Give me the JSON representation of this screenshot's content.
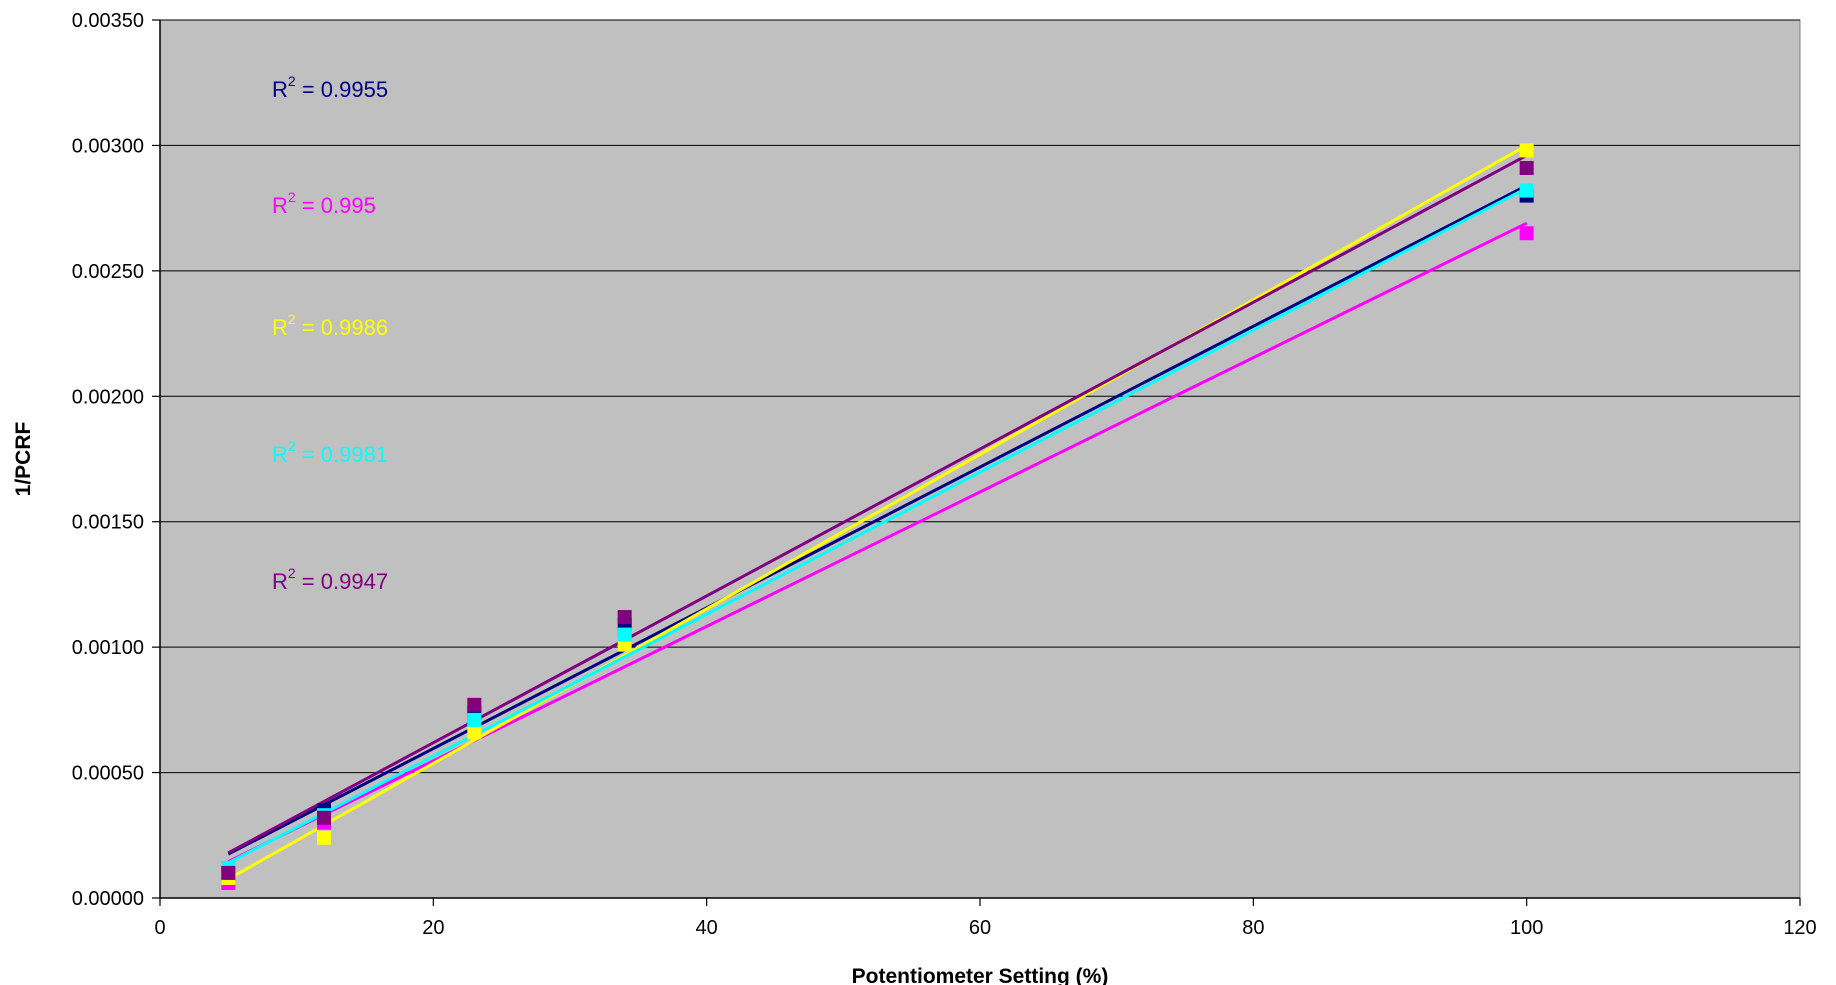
{
  "chart_data": {
    "type": "scatter",
    "title": "",
    "xlabel": "Potentiometer Setting (%)",
    "ylabel": "1/PCRF",
    "xlim": [
      0,
      120
    ],
    "ylim": [
      0,
      0.0035
    ],
    "x_ticks": [
      "0",
      "20",
      "40",
      "60",
      "80",
      "100",
      "120"
    ],
    "y_ticks": [
      "0.00000",
      "0.00050",
      "0.00100",
      "0.00150",
      "0.00200",
      "0.00250",
      "0.00300",
      "0.00350"
    ],
    "grid": "horizontal",
    "plot_background": "#c0c0c0",
    "x": [
      5,
      12,
      23,
      34,
      100
    ],
    "series": [
      {
        "color": "#000080",
        "values": [
          0.0001,
          0.00035,
          0.00074,
          0.00109,
          0.0028
        ],
        "trendline": [
          0.000175,
          0.00284
        ],
        "r2_label": "R",
        "r2_sup": "2",
        "r2_value": " = 0.9955"
      },
      {
        "color": "#ff00ff",
        "values": [
          6e-05,
          0.0003,
          0.0007,
          0.00103,
          0.00265
        ],
        "trendline": [
          0.000145,
          0.00269
        ],
        "r2_label": "R",
        "r2_sup": "2",
        "r2_value": " = 0.995"
      },
      {
        "color": "#ffff00",
        "values": [
          8e-05,
          0.00024,
          0.00066,
          0.00101,
          0.00298
        ],
        "trendline": [
          7.5e-05,
          0.003
        ],
        "r2_label": "R",
        "r2_sup": "2",
        "r2_value": " = 0.9986"
      },
      {
        "color": "#00ffff",
        "values": [
          0.00012,
          0.00033,
          0.00071,
          0.00105,
          0.00282
        ],
        "trendline": [
          0.00014,
          0.00283
        ],
        "r2_label": "R",
        "r2_sup": "2",
        "r2_value": " = 0.9981"
      },
      {
        "color": "#800080",
        "values": [
          0.0001,
          0.00032,
          0.00077,
          0.00112,
          0.00291
        ],
        "trendline": [
          0.00018,
          0.00296
        ],
        "r2_label": "R",
        "r2_sup": "2",
        "r2_value": " = 0.9947"
      }
    ]
  }
}
